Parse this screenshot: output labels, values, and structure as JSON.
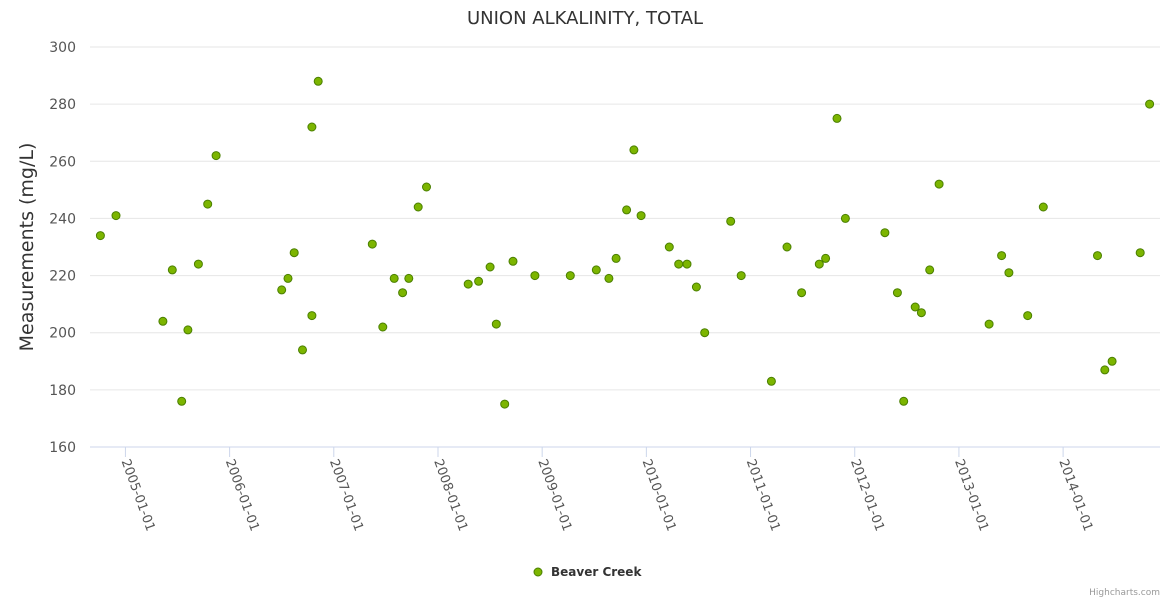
{
  "chart_data": {
    "type": "scatter",
    "title": "UNION ALKALINITY, TOTAL",
    "xlabel": "",
    "ylabel": "Measurements (mg/L)",
    "ylim": [
      160,
      300
    ],
    "yticks": [
      160,
      180,
      200,
      220,
      240,
      260,
      280,
      300
    ],
    "xlim": [
      2004.66,
      2014.93
    ],
    "xticks": [
      {
        "value": 2005,
        "label": "2005-01-01"
      },
      {
        "value": 2006,
        "label": "2006-01-01"
      },
      {
        "value": 2007,
        "label": "2007-01-01"
      },
      {
        "value": 2008,
        "label": "2008-01-01"
      },
      {
        "value": 2009,
        "label": "2009-01-01"
      },
      {
        "value": 2010,
        "label": "2010-01-01"
      },
      {
        "value": 2011,
        "label": "2011-01-01"
      },
      {
        "value": 2012,
        "label": "2012-01-01"
      },
      {
        "value": 2013,
        "label": "2013-01-01"
      },
      {
        "value": 2014,
        "label": "2014-01-01"
      }
    ],
    "grid": true,
    "legend_position": "bottom-center",
    "series": [
      {
        "name": "Beaver Creek",
        "color": "#7cb500",
        "x": [
          2004.76,
          2004.91,
          2005.36,
          2005.45,
          2005.54,
          2005.6,
          2005.7,
          2005.79,
          2005.87,
          2006.5,
          2006.56,
          2006.62,
          2006.7,
          2006.79,
          2006.79,
          2006.85,
          2007.37,
          2007.47,
          2007.58,
          2007.66,
          2007.72,
          2007.81,
          2007.89,
          2008.29,
          2008.39,
          2008.5,
          2008.56,
          2008.64,
          2008.72,
          2008.93,
          2009.27,
          2009.52,
          2009.64,
          2009.71,
          2009.81,
          2009.88,
          2009.95,
          2010.22,
          2010.31,
          2010.39,
          2010.48,
          2010.56,
          2010.81,
          2010.91,
          2011.2,
          2011.35,
          2011.49,
          2011.66,
          2011.72,
          2011.83,
          2011.91,
          2012.29,
          2012.41,
          2012.47,
          2012.58,
          2012.64,
          2012.72,
          2012.81,
          2013.29,
          2013.41,
          2013.48,
          2013.66,
          2013.81,
          2014.33,
          2014.4,
          2014.47,
          2014.74,
          2014.83
        ],
        "y": [
          234,
          241,
          204,
          222,
          176,
          201,
          224,
          245,
          262,
          215,
          219,
          228,
          194,
          206,
          272,
          288,
          231,
          202,
          219,
          214,
          219,
          244,
          251,
          217,
          218,
          223,
          203,
          175,
          225,
          220,
          220,
          222,
          219,
          226,
          243,
          264,
          241,
          230,
          224,
          224,
          216,
          200,
          239,
          220,
          183,
          230,
          214,
          224,
          226,
          275,
          240,
          235,
          214,
          176,
          209,
          207,
          222,
          252,
          203,
          227,
          221,
          206,
          244,
          227,
          187,
          190,
          228,
          280
        ]
      }
    ]
  },
  "credits": "Highcharts.com"
}
